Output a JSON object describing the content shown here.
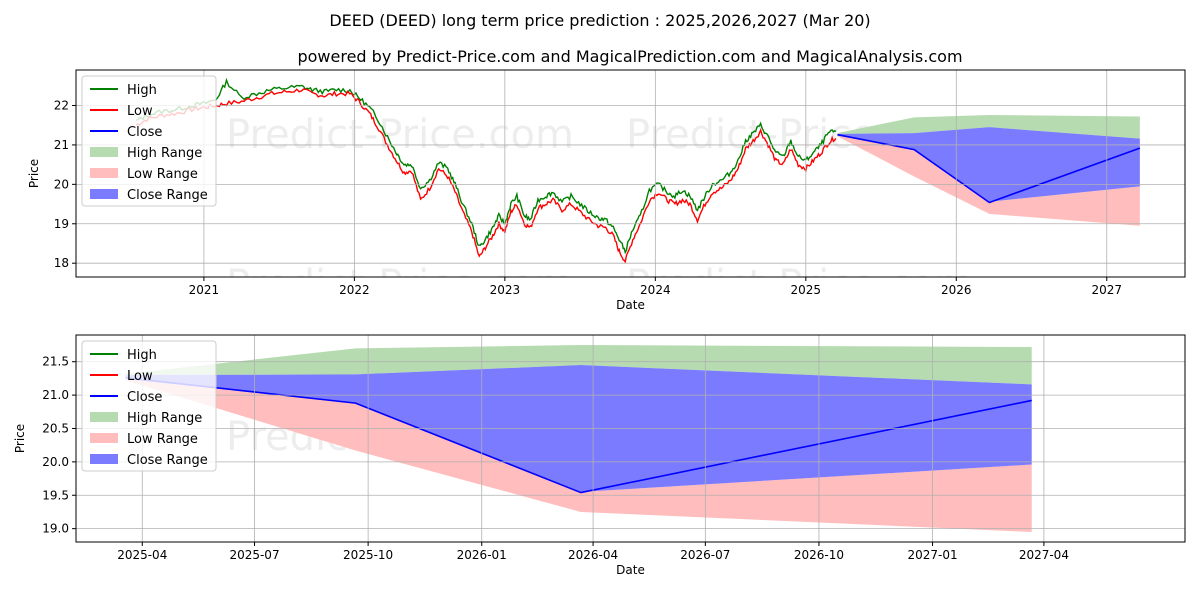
{
  "header": {
    "title": "DEED (DEED) long term price prediction : 2025,2026,2027 (Mar 20)",
    "subtitle": "powered by Predict-Price.com and MagicalPrediction.com and MagicalAnalysis.com"
  },
  "watermark": "Predict-Price.com",
  "colors": {
    "high": "#008000",
    "low": "#ff0000",
    "close": "#0000ff",
    "high_range": "#b6dbb0",
    "low_range": "#ffbdbd",
    "close_range": "#7b7bff",
    "grid": "#b0b0b0"
  },
  "chart_data": [
    {
      "type": "line",
      "title": "DEED (DEED) long term price prediction : 2025,2026,2027 (Mar 20)",
      "xlabel": "Date",
      "ylabel": "Price",
      "xlim": [
        2020.15,
        2027.52
      ],
      "ylim": [
        17.65,
        22.9
      ],
      "xticks": [
        2021,
        2022,
        2023,
        2024,
        2025,
        2026,
        2027
      ],
      "xticklabels": [
        "2021",
        "2022",
        "2023",
        "2024",
        "2025",
        "2026",
        "2027"
      ],
      "yticks": [
        18,
        19,
        20,
        21,
        22
      ],
      "yticklabels": [
        "18",
        "19",
        "20",
        "21",
        "22"
      ],
      "legend": {
        "position": "top-left",
        "entries": [
          "High",
          "Low",
          "Close",
          "High Range",
          "Low Range",
          "Close Range"
        ]
      },
      "history": {
        "dates": [
          2020.55,
          2020.62,
          2020.72,
          2020.82,
          2020.92,
          2021.0,
          2021.08,
          2021.15,
          2021.25,
          2021.35,
          2021.45,
          2021.55,
          2021.65,
          2021.72,
          2021.8,
          2021.88,
          2021.97,
          2022.03,
          2022.1,
          2022.15,
          2022.22,
          2022.28,
          2022.33,
          2022.38,
          2022.44,
          2022.5,
          2022.56,
          2022.62,
          2022.67,
          2022.72,
          2022.78,
          2022.83,
          2022.87,
          2022.92,
          2022.96,
          2023.0,
          2023.04,
          2023.08,
          2023.13,
          2023.17,
          2023.22,
          2023.27,
          2023.32,
          2023.38,
          2023.44,
          2023.5,
          2023.56,
          2023.62,
          2023.67,
          2023.72,
          2023.76,
          2023.8,
          2023.85,
          2023.9,
          2023.96,
          2024.02,
          2024.08,
          2024.13,
          2024.18,
          2024.23,
          2024.28,
          2024.33,
          2024.38,
          2024.44,
          2024.5,
          2024.55,
          2024.6,
          2024.65,
          2024.7,
          2024.75,
          2024.8,
          2024.85,
          2024.9,
          2024.95,
          2025.0,
          2025.05,
          2025.1,
          2025.15,
          2025.2
        ],
        "low": [
          21.5,
          21.65,
          21.75,
          21.8,
          21.9,
          21.95,
          22.0,
          22.05,
          22.1,
          22.2,
          22.3,
          22.35,
          22.4,
          22.3,
          22.25,
          22.3,
          22.3,
          22.1,
          21.8,
          21.5,
          21.0,
          20.6,
          20.3,
          20.35,
          19.6,
          19.9,
          20.4,
          20.2,
          19.8,
          19.3,
          18.8,
          18.15,
          18.4,
          18.7,
          19.0,
          18.8,
          19.3,
          19.5,
          19.0,
          18.9,
          19.4,
          19.5,
          19.6,
          19.35,
          19.5,
          19.3,
          19.1,
          18.95,
          18.9,
          18.7,
          18.3,
          18.05,
          18.6,
          19.0,
          19.6,
          19.8,
          19.6,
          19.5,
          19.6,
          19.5,
          19.1,
          19.5,
          19.8,
          19.9,
          20.1,
          20.4,
          20.9,
          21.1,
          21.35,
          21.0,
          20.6,
          20.5,
          20.9,
          20.5,
          20.4,
          20.6,
          20.8,
          21.05,
          21.2
        ],
        "high": [
          21.6,
          21.75,
          21.85,
          21.9,
          22.0,
          22.05,
          22.15,
          22.6,
          22.2,
          22.3,
          22.4,
          22.45,
          22.48,
          22.4,
          22.35,
          22.4,
          22.38,
          22.2,
          21.95,
          21.7,
          21.2,
          20.8,
          20.5,
          20.5,
          19.9,
          20.1,
          20.55,
          20.4,
          20.0,
          19.5,
          19.0,
          18.4,
          18.6,
          18.9,
          19.2,
          19.0,
          19.5,
          19.7,
          19.2,
          19.1,
          19.6,
          19.7,
          19.8,
          19.55,
          19.7,
          19.5,
          19.3,
          19.15,
          19.1,
          18.9,
          18.6,
          18.3,
          18.85,
          19.2,
          19.85,
          20.0,
          19.8,
          19.7,
          19.85,
          19.7,
          19.35,
          19.7,
          20.0,
          20.1,
          20.3,
          20.6,
          21.1,
          21.3,
          21.5,
          21.2,
          20.8,
          20.7,
          21.1,
          20.7,
          20.6,
          20.8,
          21.0,
          21.3,
          21.35
        ]
      },
      "forecast": {
        "dates": [
          2025.21,
          2025.72,
          2026.22,
          2027.22
        ],
        "close": [
          21.26,
          20.88,
          19.54,
          20.92
        ],
        "high_range_upper": [
          21.3,
          21.7,
          21.76,
          21.72
        ],
        "close_range_upper": [
          21.28,
          21.3,
          21.45,
          21.16
        ],
        "close_range_lower": [
          21.24,
          20.88,
          19.56,
          19.95
        ],
        "low_range_lower": [
          21.22,
          20.2,
          19.25,
          18.95
        ]
      }
    },
    {
      "type": "area",
      "xlabel": "Date",
      "ylabel": "Price",
      "xlim": [
        2025.1,
        2027.56
      ],
      "ylim": [
        18.8,
        21.9
      ],
      "xticks": [
        2025.247,
        2025.496,
        2025.748,
        2026.0,
        2026.247,
        2026.496,
        2026.748,
        2027.0,
        2027.247
      ],
      "xticklabels": [
        "2025-04",
        "2025-07",
        "2025-10",
        "2026-01",
        "2026-04",
        "2026-07",
        "2026-10",
        "2027-01",
        "2027-04"
      ],
      "yticks": [
        19.0,
        19.5,
        20.0,
        20.5,
        21.0,
        21.5
      ],
      "yticklabels": [
        "19.0",
        "19.5",
        "20.0",
        "20.5",
        "21.0",
        "21.5"
      ],
      "legend": {
        "position": "top-left",
        "entries": [
          "High",
          "Low",
          "Close",
          "High Range",
          "Low Range",
          "Close Range"
        ]
      },
      "forecast": {
        "dates": [
          2025.21,
          2025.72,
          2026.22,
          2027.22
        ],
        "close": [
          21.26,
          20.88,
          19.54,
          20.92
        ],
        "high_range_upper": [
          21.32,
          21.7,
          21.75,
          21.72
        ],
        "close_range_upper": [
          21.3,
          21.31,
          21.45,
          21.16
        ],
        "close_range_lower": [
          21.24,
          20.88,
          19.55,
          19.96
        ],
        "low_range_lower": [
          21.22,
          20.17,
          19.25,
          18.95
        ]
      }
    }
  ]
}
